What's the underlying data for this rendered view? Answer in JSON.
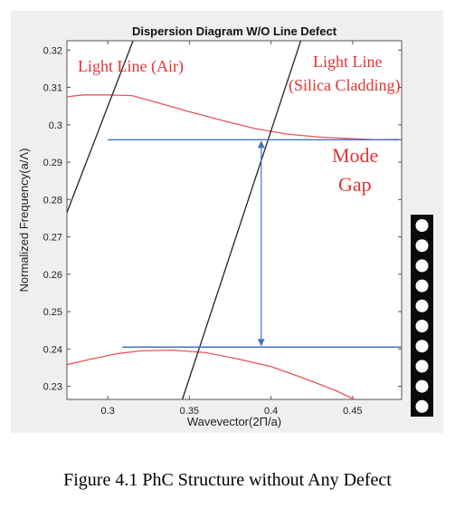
{
  "chart_data": {
    "type": "line",
    "title": "Dispersion Diagram W/O Line Defect",
    "xlabel": "Wavevector(2Π/a)",
    "ylabel": "Normalized Frequency(a/Λ)",
    "xlim": [
      0.275,
      0.48
    ],
    "ylim": [
      0.2265,
      0.3225
    ],
    "xticks": [
      0.3,
      0.35,
      0.4,
      0.45
    ],
    "xtick_labels": [
      "0.3",
      "0.35",
      "0.4",
      "0.45"
    ],
    "yticks": [
      0.23,
      0.24,
      0.25,
      0.26,
      0.27,
      0.28,
      0.29,
      0.3,
      0.31,
      0.32
    ],
    "ytick_labels": [
      "0.23",
      "0.24",
      "0.25",
      "0.26",
      "0.27",
      "0.28",
      "0.29",
      "0.3",
      "0.31",
      "0.32"
    ],
    "grid": false,
    "series": [
      {
        "color": "#e8555b",
        "points": [
          [
            0.275,
            0.3075
          ],
          [
            0.285,
            0.308
          ],
          [
            0.3,
            0.308
          ],
          [
            0.315,
            0.3078
          ],
          [
            0.33,
            0.306
          ],
          [
            0.35,
            0.3035
          ],
          [
            0.37,
            0.3012
          ],
          [
            0.39,
            0.299
          ],
          [
            0.41,
            0.2975
          ],
          [
            0.43,
            0.2967
          ],
          [
            0.45,
            0.2963
          ],
          [
            0.465,
            0.296
          ],
          [
            0.478,
            0.2961
          ]
        ]
      },
      {
        "color": "#e8555b",
        "points": [
          [
            0.275,
            0.2358
          ],
          [
            0.29,
            0.2373
          ],
          [
            0.305,
            0.2387
          ],
          [
            0.32,
            0.2395
          ],
          [
            0.34,
            0.2397
          ],
          [
            0.36,
            0.239
          ],
          [
            0.38,
            0.2373
          ],
          [
            0.4,
            0.2353
          ],
          [
            0.42,
            0.2322
          ],
          [
            0.44,
            0.2288
          ],
          [
            0.451,
            0.2265
          ]
        ]
      },
      {
        "name": "Light Line (Air)",
        "color": "#222222",
        "points": [
          [
            0.275,
            0.2765
          ],
          [
            0.3155,
            0.3225
          ]
        ]
      },
      {
        "name": "Light Line (Silica Cladding)",
        "color": "#222222",
        "points": [
          [
            0.3457,
            0.2265
          ],
          [
            0.4182,
            0.3225
          ]
        ]
      }
    ],
    "mode_gap": {
      "upper": 0.296,
      "lower": 0.2405,
      "x_start_upper": 0.3,
      "x_start_lower": 0.309,
      "x_end": 0.48,
      "arrow_x": 0.394,
      "color": "#4472c4"
    },
    "annotations": {
      "light_line_air": "Light Line (Air)",
      "light_line_silica_1": "Light Line",
      "light_line_silica_2": "(Silica Cladding)",
      "mode_gap_1": "Mode",
      "mode_gap_2": "Gap",
      "color": "#e03434"
    }
  },
  "caption": "Figure 4.1 PhC Structure without Any Defect"
}
